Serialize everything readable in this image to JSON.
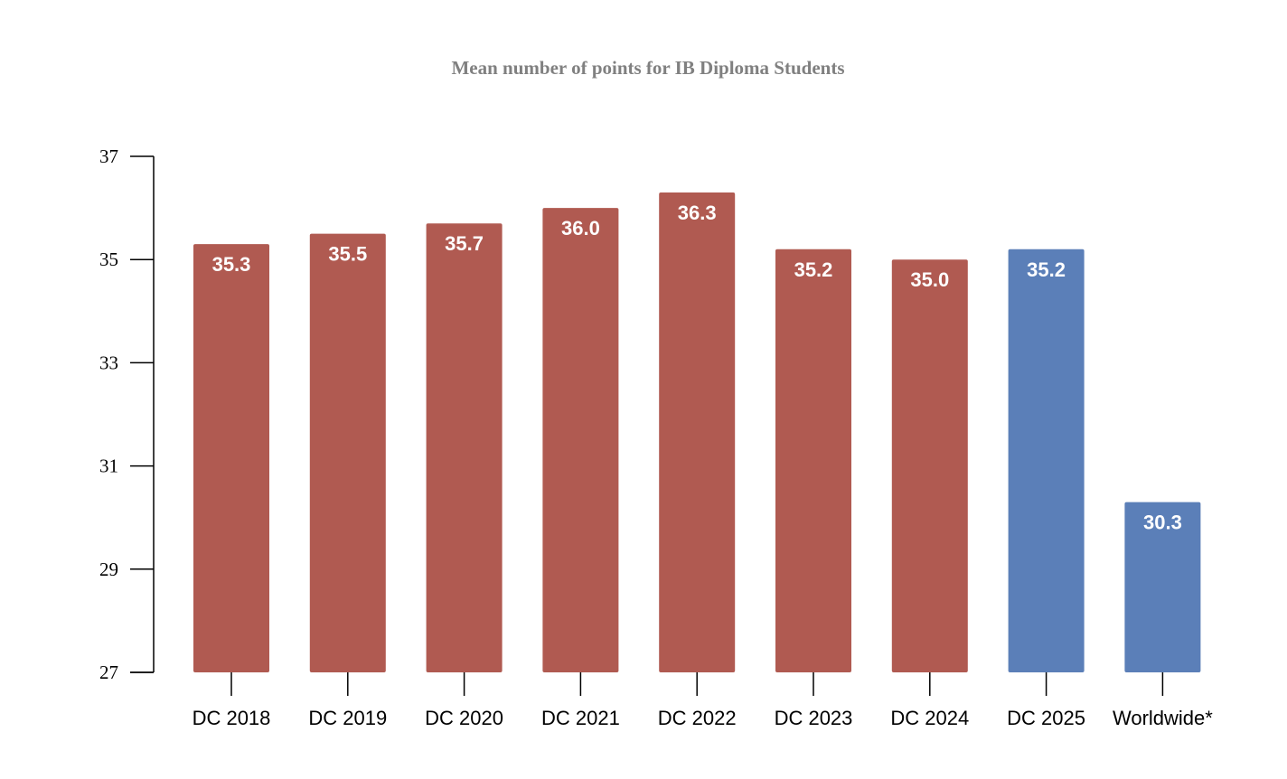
{
  "chart_data": {
    "type": "bar",
    "title": "Mean number of points for IB Diploma Students",
    "xlabel": "",
    "ylabel": "",
    "categories": [
      "DC 2018",
      "DC 2019",
      "DC 2020",
      "DC 2021",
      "DC 2022",
      "DC 2023",
      "DC 2024",
      "DC 2025",
      "Worldwide*"
    ],
    "values": [
      35.3,
      35.5,
      35.7,
      36.0,
      36.3,
      35.2,
      35.0,
      35.2,
      30.3
    ],
    "value_labels": [
      "35.3",
      "35.5",
      "35.7",
      "36.0",
      "36.3",
      "35.2",
      "35.0",
      "35.2",
      "30.3"
    ],
    "bar_colors": [
      "#b05a51",
      "#b05a51",
      "#b05a51",
      "#b05a51",
      "#b05a51",
      "#b05a51",
      "#b05a51",
      "#5b7fb8",
      "#5b7fb8"
    ],
    "ylim": [
      27,
      37
    ],
    "yticks": [
      27,
      29,
      31,
      33,
      35,
      37
    ],
    "grid": false,
    "legend": "none"
  }
}
